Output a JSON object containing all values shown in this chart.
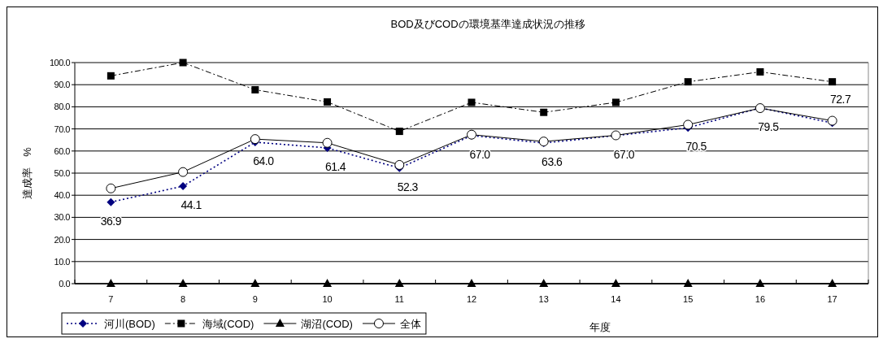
{
  "chart_data": {
    "type": "line",
    "title": "BOD及びCODの環境基準達成状況の推移",
    "xlabel": "年度",
    "ylabel": "達成率　%",
    "categories": [
      "7",
      "8",
      "9",
      "10",
      "11",
      "12",
      "13",
      "14",
      "15",
      "16",
      "17"
    ],
    "ylim": [
      0,
      100
    ],
    "yticks": [
      {
        "value": 0,
        "label": "0.0"
      },
      {
        "value": 10,
        "label": "10.0"
      },
      {
        "value": 20,
        "label": "20.0"
      },
      {
        "value": 30,
        "label": "30.0"
      },
      {
        "value": 40,
        "label": "40.0"
      },
      {
        "value": 50,
        "label": "50.0"
      },
      {
        "value": 60,
        "label": "60.0"
      },
      {
        "value": 70,
        "label": "70.0"
      },
      {
        "value": 80,
        "label": "80.0"
      },
      {
        "value": 90,
        "label": "90.0"
      },
      {
        "value": 100,
        "label": "100.0"
      }
    ],
    "grid": "y",
    "legend": "bottom left",
    "series": [
      {
        "name": "河川(BOD)",
        "color": "#000080",
        "marker": "diamond",
        "line_style": "dotted",
        "values": [
          36.9,
          44.1,
          64.0,
          61.4,
          52.3,
          67.0,
          63.6,
          67.0,
          70.5,
          79.5,
          72.7
        ],
        "value_labels": [
          "36.9",
          "44.1",
          "64.0",
          "61.4",
          "52.3",
          "67.0",
          "63.6",
          "67.0",
          "70.5",
          "79.5",
          "72.7"
        ]
      },
      {
        "name": "海域(COD)",
        "color": "#000000",
        "marker": "square",
        "line_style": "dashed",
        "values": [
          94.0,
          100,
          87.7,
          82.2,
          68.9,
          82.0,
          77.5,
          82.0,
          91.3,
          95.8,
          91.3
        ]
      },
      {
        "name": "湖沼(COD)",
        "color": "#000000",
        "marker": "triangle",
        "line_style": "solid",
        "values": [
          0,
          0,
          0,
          0,
          0,
          0,
          0,
          0,
          0,
          0,
          0
        ]
      },
      {
        "name": "全体",
        "color": "#000000",
        "marker": "circle",
        "line_style": "solid",
        "values": [
          43.1,
          50.5,
          65.4,
          63.7,
          53.7,
          67.4,
          64.3,
          67.1,
          71.9,
          79.4,
          73.7
        ]
      }
    ]
  }
}
